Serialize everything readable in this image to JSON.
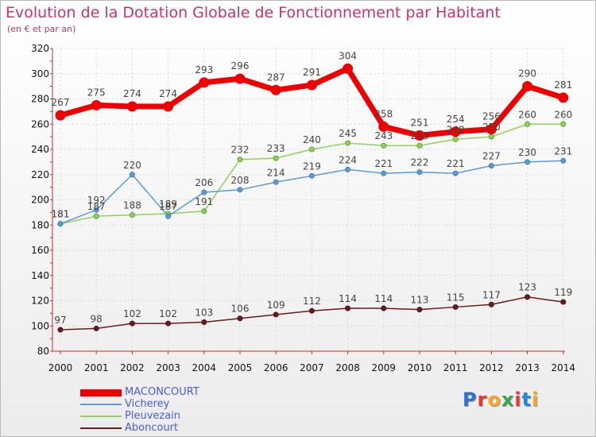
{
  "header": {
    "title": "Evolution de la Dotation Globale de Fonctionnement par Habitant",
    "subtitle": "(en € et par an)"
  },
  "logo": {
    "text": "Proxiti",
    "letters": [
      "P",
      "r",
      "o",
      "x",
      "i",
      "t",
      "i"
    ],
    "colors": [
      "#2f6fd6",
      "#e53935",
      "#f5a623",
      "#43a047",
      "#e53935",
      "#1e88e5",
      "#f5a623"
    ]
  },
  "chart_data": {
    "type": "line",
    "title": "Evolution de la Dotation Globale de Fonctionnement par Habitant",
    "subtitle": "(en € et par an)",
    "xlabel": "",
    "ylabel": "",
    "x": [
      "2000",
      "2001",
      "2002",
      "2003",
      "2004",
      "2005",
      "2006",
      "2007",
      "2008",
      "2009",
      "2010",
      "2011",
      "2012",
      "2013",
      "2014"
    ],
    "ylim": [
      80,
      320
    ],
    "yticks": [
      80,
      100,
      120,
      140,
      160,
      180,
      200,
      220,
      240,
      260,
      280,
      300,
      320
    ],
    "grid": true,
    "legend_position": "bottom-left",
    "series": [
      {
        "name": "MACONCOURT",
        "color": "#ee0000",
        "values": [
          267,
          275,
          274,
          274,
          293,
          296,
          287,
          291,
          304,
          258,
          251,
          254,
          256,
          290,
          281
        ]
      },
      {
        "name": "Vicherey",
        "color": "#5b9bd5",
        "values": [
          181,
          192,
          220,
          187,
          206,
          208,
          214,
          219,
          224,
          221,
          222,
          221,
          227,
          230,
          231
        ]
      },
      {
        "name": "Pleuvezain",
        "color": "#8ed35a",
        "values": [
          181,
          187,
          188,
          189,
          191,
          232,
          233,
          240,
          245,
          243,
          243,
          248,
          250,
          260,
          260
        ]
      },
      {
        "name": "Aboncourt",
        "color": "#6b1a1a",
        "values": [
          97,
          98,
          102,
          102,
          103,
          106,
          109,
          112,
          114,
          114,
          113,
          115,
          117,
          123,
          119
        ]
      }
    ]
  }
}
